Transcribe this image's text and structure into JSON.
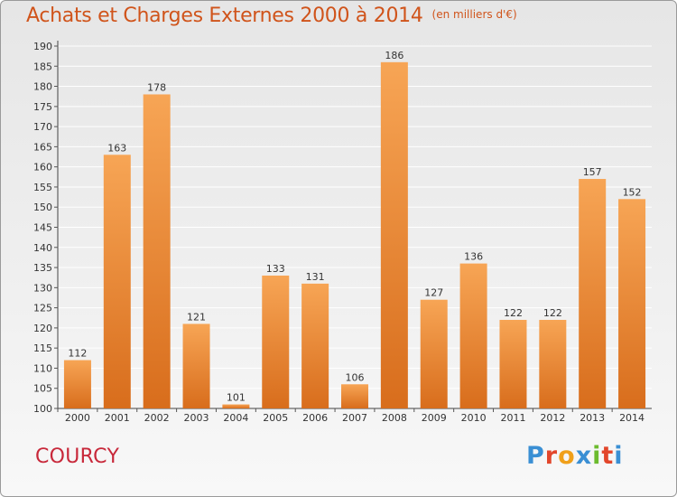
{
  "header": {
    "title": "Achats et Charges Externes 2000 à 2014",
    "unit": "(en milliers d'€)"
  },
  "footer": {
    "commune": "COURCY",
    "brand": "Proxiti"
  },
  "colors": {
    "bar_light": "#f7a555",
    "bar_dark": "#d86d1c",
    "title": "#d0541b",
    "commune": "#c8283a",
    "logo_letters": [
      "#3a8fd4",
      "#e2462b",
      "#f0a01a",
      "#3a8fd4",
      "#6cbb2e",
      "#e2462b",
      "#3a8fd4"
    ]
  },
  "chart_data": {
    "type": "bar",
    "categories": [
      "2000",
      "2001",
      "2002",
      "2003",
      "2004",
      "2005",
      "2006",
      "2007",
      "2008",
      "2009",
      "2010",
      "2011",
      "2012",
      "2013",
      "2014"
    ],
    "values": [
      112,
      163,
      178,
      121,
      101,
      133,
      131,
      106,
      186,
      127,
      136,
      122,
      122,
      157,
      152
    ],
    "ylim": [
      100,
      190
    ],
    "yticks": [
      100,
      105,
      110,
      115,
      120,
      125,
      130,
      135,
      140,
      145,
      150,
      155,
      160,
      165,
      170,
      175,
      180,
      185,
      190
    ],
    "grid": "horizontal",
    "data_labels": true
  }
}
